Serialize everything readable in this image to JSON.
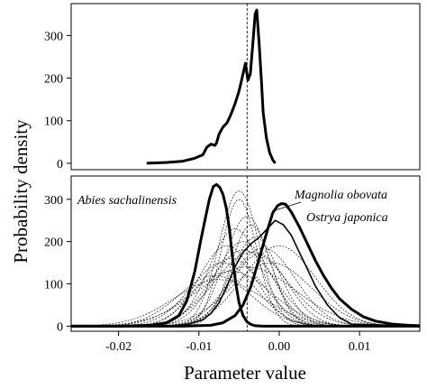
{
  "chart_data": {
    "type": "line",
    "ylabel": "Probability density",
    "xlabel": "Parameter value",
    "x_ticks": [
      -0.02,
      -0.01,
      0.0,
      0.01
    ],
    "x_tick_labels": [
      "-0.02",
      "-0.01",
      "0.00",
      "0.01"
    ],
    "xlim": [
      -0.0259,
      0.0175
    ],
    "reference_line_x": -0.004,
    "panels": [
      {
        "id": "top",
        "ylim": [
          -15,
          375
        ],
        "y_ticks": [
          0,
          100,
          200,
          300
        ],
        "y_tick_labels": [
          "0",
          "100",
          "200",
          "300"
        ],
        "series": [
          {
            "style": "thick",
            "x": [
              -0.0165,
              -0.014,
              -0.012,
              -0.0105,
              -0.0095,
              -0.009,
              -0.0085,
              -0.008,
              -0.0078,
              -0.0075,
              -0.007,
              -0.0065,
              -0.006,
              -0.0055,
              -0.005,
              -0.0045,
              -0.0042,
              -0.0039,
              -0.0036,
              -0.0032,
              -0.003,
              -0.0028,
              -0.0025,
              -0.0022,
              -0.002,
              -0.0016,
              -0.0012,
              -0.0008,
              -0.0005
            ],
            "y": [
              0,
              2,
              5,
              12,
              20,
              38,
              45,
              42,
              48,
              68,
              85,
              95,
              115,
              140,
              170,
              210,
              235,
              195,
              210,
              300,
              350,
              360,
              280,
              190,
              120,
              60,
              25,
              8,
              0
            ]
          }
        ]
      },
      {
        "id": "bottom",
        "ylim": [
          -12,
          355
        ],
        "y_ticks": [
          0,
          100,
          200,
          300
        ],
        "y_tick_labels": [
          "0",
          "100",
          "200",
          "300"
        ],
        "highlighted_series": [
          {
            "name": "Abies sachalinensis",
            "x": [
              -0.0259,
              -0.02,
              -0.016,
              -0.014,
              -0.0125,
              -0.0115,
              -0.0105,
              -0.0098,
              -0.0092,
              -0.0087,
              -0.0082,
              -0.0078,
              -0.0074,
              -0.007,
              -0.0066,
              -0.0062,
              -0.0058,
              -0.0054,
              -0.005,
              -0.0045,
              -0.004,
              -0.0035,
              -0.003,
              -0.002,
              0.0,
              0.0175
            ],
            "y": [
              0,
              0,
              2,
              8,
              25,
              60,
              130,
              200,
              255,
              300,
              330,
              335,
              328,
              312,
              280,
              230,
              160,
              100,
              55,
              25,
              10,
              4,
              1,
              0,
              0,
              0
            ]
          },
          {
            "name": "Ostrya japonica",
            "x": [
              -0.0259,
              -0.012,
              -0.0085,
              -0.007,
              -0.0055,
              -0.0045,
              -0.0035,
              -0.0025,
              -0.0015,
              -0.0008,
              -0.0002,
              0.0003,
              0.0008,
              0.0015,
              0.0025,
              0.0035,
              0.0045,
              0.0055,
              0.0065,
              0.0075,
              0.009,
              0.0105,
              0.012,
              0.014,
              0.016,
              0.0175
            ],
            "y": [
              0,
              0,
              2,
              8,
              25,
              50,
              95,
              160,
              225,
              268,
              285,
              290,
              288,
              270,
              235,
              195,
              155,
              120,
              90,
              65,
              40,
              22,
              12,
              5,
              2,
              1
            ]
          },
          {
            "name": "Magnolia obovata",
            "x": [
              -0.0259,
              -0.014,
              -0.0112,
              -0.0095,
              -0.0085,
              -0.0075,
              -0.0065,
              -0.0055,
              -0.0045,
              -0.0035,
              -0.0025,
              -0.0015,
              -0.0005,
              0.0005,
              0.0015,
              0.0025,
              0.0035,
              0.0045,
              0.006,
              0.0075,
              0.009,
              0.0175
            ],
            "y": [
              0,
              0,
              5,
              15,
              30,
              55,
              95,
              140,
              175,
              195,
              210,
              230,
              250,
              240,
              215,
              175,
              135,
              95,
              50,
              20,
              5,
              0
            ]
          }
        ],
        "dashed_series": [
          {
            "mu": -0.005,
            "sigma": 0.0025,
            "peak": 320
          },
          {
            "mu": -0.0045,
            "sigma": 0.0035,
            "peak": 200
          },
          {
            "mu": -0.006,
            "sigma": 0.004,
            "peak": 160
          },
          {
            "mu": -0.0035,
            "sigma": 0.0045,
            "peak": 175
          },
          {
            "mu": -0.007,
            "sigma": 0.004,
            "peak": 150
          },
          {
            "mu": -0.002,
            "sigma": 0.004,
            "peak": 185
          },
          {
            "mu": -0.004,
            "sigma": 0.0028,
            "peak": 260
          },
          {
            "mu": -0.0055,
            "sigma": 0.0032,
            "peak": 230
          },
          {
            "mu": -0.003,
            "sigma": 0.003,
            "peak": 210
          },
          {
            "mu": -0.0065,
            "sigma": 0.0035,
            "peak": 190
          },
          {
            "mu": -0.001,
            "sigma": 0.005,
            "peak": 150
          },
          {
            "mu": -0.008,
            "sigma": 0.0045,
            "peak": 120
          },
          {
            "mu": -0.004,
            "sigma": 0.006,
            "peak": 140
          },
          {
            "mu": -0.005,
            "sigma": 0.0022,
            "peak": 300
          },
          {
            "mu": -0.0025,
            "sigma": 0.0035,
            "peak": 170
          },
          {
            "mu": -0.006,
            "sigma": 0.005,
            "peak": 130
          },
          {
            "mu": 0.0,
            "sigma": 0.0045,
            "peak": 190
          },
          {
            "mu": -0.0045,
            "sigma": 0.004,
            "peak": 180
          },
          {
            "mu": -0.0035,
            "sigma": 0.0025,
            "peak": 240
          },
          {
            "mu": -0.0075,
            "sigma": 0.0055,
            "peak": 110
          }
        ],
        "annotations": [
          {
            "text": "Abies sachalinensis"
          },
          {
            "text": "Magnolia obovata"
          },
          {
            "text": "Ostrya japonica"
          }
        ]
      }
    ]
  }
}
